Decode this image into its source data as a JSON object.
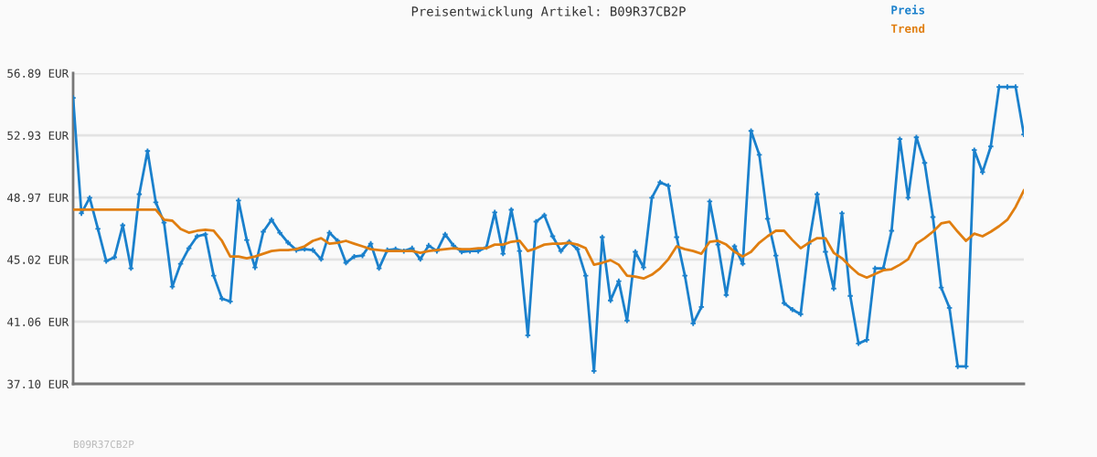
{
  "chart_data": {
    "type": "line",
    "title": "Preisentwicklung Artikel: B09R37CB2P",
    "categories": [
      null,
      null,
      null,
      null,
      null,
      null,
      null,
      null,
      null,
      null,
      null,
      null,
      null,
      null,
      null,
      null,
      null,
      null,
      null,
      null,
      null,
      null,
      null,
      null,
      null,
      null,
      null,
      null,
      null,
      null,
      null,
      null,
      null,
      null,
      null,
      null,
      null,
      null,
      null,
      null,
      null,
      null,
      null,
      null,
      null,
      null,
      null,
      null,
      null,
      null,
      null,
      null,
      null,
      null,
      null,
      null,
      null,
      null,
      null,
      null,
      null,
      null,
      null,
      null,
      null,
      null,
      null,
      null,
      null,
      null,
      null,
      null,
      null,
      null,
      null,
      null,
      null,
      null,
      null,
      null,
      null,
      null,
      null,
      null,
      null,
      null,
      null,
      null,
      null,
      null,
      null,
      null,
      null,
      null,
      null,
      null,
      null,
      null,
      null,
      null,
      null,
      null,
      null,
      null,
      null,
      null,
      null,
      null,
      null,
      null,
      null,
      null,
      null,
      null,
      null,
      null
    ],
    "series": [
      {
        "name": "Preis",
        "color": "#1a80cc",
        "marker": "cross",
        "values": [
          55.31,
          47.96,
          48.95,
          46.97,
          44.92,
          45.16,
          47.2,
          44.46,
          49.18,
          51.93,
          48.66,
          47.37,
          43.29,
          44.75,
          45.74,
          46.5,
          46.62,
          43.99,
          42.53,
          42.35,
          48.78,
          46.26,
          44.51,
          46.79,
          47.55,
          46.73,
          46.09,
          45.62,
          45.68,
          45.62,
          45.04,
          46.73,
          46.21,
          44.81,
          45.21,
          45.27,
          46.03,
          44.46,
          45.62,
          45.68,
          45.56,
          45.74,
          45.04,
          45.91,
          45.56,
          46.62,
          45.91,
          45.51,
          45.56,
          45.56,
          45.8,
          48.02,
          45.39,
          48.19,
          45.56,
          40.19,
          47.43,
          47.84,
          46.5,
          45.56,
          46.15,
          45.68,
          43.99,
          37.92,
          46.44,
          42.41,
          43.64,
          41.13,
          45.51,
          44.51,
          48.95,
          49.94,
          49.71,
          46.44,
          43.99,
          40.95,
          42.0,
          48.72,
          45.97,
          42.76,
          45.86,
          44.75,
          53.21,
          51.69,
          47.61,
          45.27,
          42.24,
          41.83,
          41.54,
          46.03,
          49.18,
          45.51,
          43.17,
          47.96,
          42.7,
          39.67,
          39.9,
          44.46,
          44.46,
          46.85,
          52.69,
          48.95,
          52.8,
          51.17,
          47.72,
          43.23,
          41.94,
          38.21,
          38.21,
          51.99,
          50.58,
          52.22,
          56.01,
          56.01,
          56.01,
          52.98
        ]
      },
      {
        "name": "Trend",
        "color": "#e07e10",
        "values": [
          48.19,
          48.19,
          48.19,
          48.19,
          48.19,
          48.19,
          48.19,
          48.19,
          48.19,
          48.19,
          48.19,
          47.55,
          47.49,
          46.97,
          46.73,
          46.85,
          46.91,
          46.85,
          46.21,
          45.21,
          45.21,
          45.1,
          45.21,
          45.39,
          45.56,
          45.62,
          45.62,
          45.68,
          45.86,
          46.21,
          46.38,
          46.03,
          46.09,
          46.21,
          46.03,
          45.86,
          45.68,
          45.62,
          45.56,
          45.56,
          45.56,
          45.56,
          45.45,
          45.56,
          45.62,
          45.68,
          45.74,
          45.68,
          45.68,
          45.74,
          45.74,
          45.97,
          45.97,
          46.15,
          46.21,
          45.56,
          45.74,
          45.97,
          46.03,
          46.03,
          46.09,
          45.97,
          45.74,
          44.69,
          44.81,
          44.98,
          44.69,
          43.99,
          43.93,
          43.81,
          44.05,
          44.46,
          45.04,
          45.86,
          45.68,
          45.56,
          45.39,
          46.15,
          46.21,
          45.97,
          45.51,
          45.21,
          45.51,
          46.09,
          46.5,
          46.85,
          46.85,
          46.26,
          45.74,
          46.09,
          46.38,
          46.38,
          45.45,
          45.1,
          44.57,
          44.1,
          43.87,
          44.1,
          44.34,
          44.4,
          44.69,
          45.04,
          46.03,
          46.38,
          46.79,
          47.32,
          47.43,
          46.79,
          46.21,
          46.67,
          46.5,
          46.79,
          47.14,
          47.55,
          48.37,
          49.42
        ]
      }
    ],
    "ylim": [
      37.1,
      56.89
    ],
    "yticks": [
      {
        "value": 37.1,
        "label": "37.10 EUR"
      },
      {
        "value": 41.06,
        "label": "41.06 EUR"
      },
      {
        "value": 45.02,
        "label": "45.02 EUR"
      },
      {
        "value": 48.97,
        "label": "48.97 EUR"
      },
      {
        "value": 52.93,
        "label": "52.93 EUR"
      },
      {
        "value": 56.89,
        "label": "56.89 EUR"
      }
    ],
    "grid": "y",
    "legend": "top right",
    "line_style": "solid",
    "annotations": [
      "B09R37CB2P"
    ]
  }
}
